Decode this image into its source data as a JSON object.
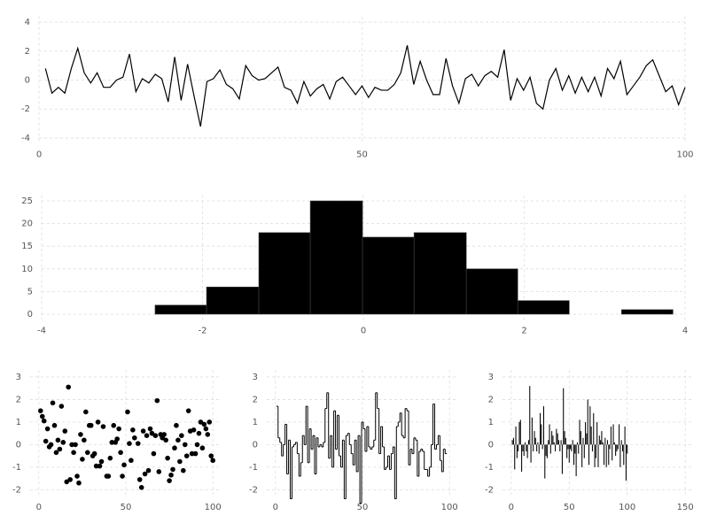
{
  "chart_data": [
    {
      "type": "line",
      "color": "#000000",
      "grid": true,
      "x": [
        1,
        2,
        3,
        4,
        5,
        6,
        7,
        8,
        9,
        10,
        11,
        12,
        13,
        14,
        15,
        16,
        17,
        18,
        19,
        20,
        21,
        22,
        23,
        24,
        25,
        26,
        27,
        28,
        29,
        30,
        31,
        32,
        33,
        34,
        35,
        36,
        37,
        38,
        39,
        40,
        41,
        42,
        43,
        44,
        45,
        46,
        47,
        48,
        49,
        50,
        51,
        52,
        53,
        54,
        55,
        56,
        57,
        58,
        59,
        60,
        61,
        62,
        63,
        64,
        65,
        66,
        67,
        68,
        69,
        70,
        71,
        72,
        73,
        74,
        75,
        76,
        77,
        78,
        79,
        80,
        81,
        82,
        83,
        84,
        85,
        86,
        87,
        88,
        89,
        90,
        91,
        92,
        93,
        94,
        95,
        96,
        97,
        98,
        99,
        100
      ],
      "values": [
        0.8,
        -0.9,
        -0.5,
        -0.9,
        0.8,
        2.2,
        0.5,
        -0.2,
        0.5,
        -0.5,
        -0.5,
        0.0,
        0.2,
        1.8,
        -0.8,
        0.1,
        -0.2,
        0.4,
        0.1,
        -1.5,
        1.6,
        -1.4,
        1.1,
        -1.1,
        -3.2,
        -0.1,
        0.1,
        0.7,
        -0.3,
        -0.6,
        -1.3,
        1.0,
        0.3,
        0.0,
        0.1,
        0.5,
        0.9,
        -0.5,
        -0.7,
        -1.6,
        -0.1,
        -1.1,
        -0.6,
        -0.3,
        -1.3,
        -0.1,
        0.2,
        -0.4,
        -1.0,
        -0.4,
        -1.2,
        -0.5,
        -0.7,
        -0.7,
        -0.3,
        0.5,
        2.4,
        -0.3,
        1.3,
        0.0,
        -1.0,
        -1.0,
        1.5,
        -0.4,
        -1.6,
        0.1,
        0.4,
        -0.4,
        0.3,
        0.6,
        0.2,
        2.1,
        -1.4,
        0.1,
        -0.7,
        0.2,
        -1.6,
        -2.0,
        0.0,
        0.8,
        -0.7,
        0.3,
        -0.9,
        0.2,
        -0.8,
        0.2,
        -1.1,
        0.8,
        0.1,
        1.3,
        -1.0,
        -0.4,
        0.2,
        1.0,
        1.4,
        0.3,
        -0.8,
        -0.4,
        -1.7,
        -0.5
      ],
      "xlim": [
        0,
        100
      ],
      "ylim": [
        -4.4,
        4.4
      ],
      "xticks": [
        0,
        50,
        100
      ],
      "yticks": [
        -4,
        -2,
        0,
        2,
        4
      ]
    },
    {
      "type": "histogram",
      "color": "#000000",
      "grid": true,
      "bins": [
        -2.59,
        -1.95,
        -1.3,
        -0.66,
        -0.01,
        0.63,
        1.28,
        1.92,
        2.56,
        3.21,
        3.85
      ],
      "values": [
        2,
        6,
        18,
        25,
        17,
        18,
        10,
        3,
        0,
        1
      ],
      "xlim": [
        -4,
        4
      ],
      "ylim": [
        -1.25,
        26.25
      ],
      "xticks": [
        -4,
        -2,
        0,
        2,
        4
      ],
      "yticks": [
        0,
        5,
        10,
        15,
        20,
        25
      ]
    },
    {
      "type": "scatter",
      "color": "#000000",
      "grid": true,
      "x": [
        1,
        2,
        3,
        4,
        5,
        6,
        7,
        8,
        9,
        10,
        11,
        12,
        13,
        14,
        15,
        16,
        17,
        18,
        19,
        20,
        21,
        22,
        23,
        24,
        25,
        26,
        27,
        28,
        29,
        30,
        31,
        32,
        33,
        34,
        35,
        36,
        37,
        39,
        40,
        41,
        42,
        43,
        44,
        45,
        46,
        47,
        48,
        49,
        51,
        52,
        53,
        54,
        55,
        57,
        58,
        59,
        60,
        61,
        62,
        63,
        64,
        65,
        66,
        67,
        68,
        69,
        70,
        71,
        72,
        73,
        74,
        75,
        76,
        77,
        78,
        79,
        80,
        81,
        82,
        83,
        84,
        85,
        86,
        87,
        88,
        89,
        90,
        91,
        92,
        93,
        94,
        95,
        96,
        97,
        98,
        99,
        100
      ],
      "values": [
        1.5,
        1.25,
        1.05,
        0.15,
        0.7,
        -0.1,
        0,
        1.85,
        0.85,
        -0.35,
        0.2,
        -0.2,
        1.7,
        0.1,
        0.6,
        -1.65,
        2.55,
        -1.55,
        0,
        -0.35,
        0,
        -1.4,
        -1.7,
        0.45,
        -0.65,
        0.2,
        1.45,
        -0.35,
        0.85,
        0.85,
        -0.5,
        -0.4,
        -0.95,
        1.0,
        -0.95,
        -0.75,
        0.8,
        -1.4,
        -1.4,
        -0.6,
        0.1,
        0.85,
        0.1,
        0.25,
        0.7,
        -0.35,
        -1.4,
        -0.9,
        1.45,
        0.05,
        -0.7,
        0.65,
        0.3,
        0.05,
        -1.55,
        -1.9,
        0.6,
        -1.3,
        0.4,
        -1.15,
        0.7,
        0.5,
        -0.4,
        0.4,
        1.95,
        -1.2,
        0.45,
        0.3,
        0.45,
        0.2,
        -0.6,
        -1.6,
        -1.35,
        -1.1,
        -0.15,
        0.85,
        0.2,
        -0.75,
        0.4,
        -1.15,
        0,
        -0.5,
        1.5,
        0.6,
        -0.4,
        0.65,
        -0.4,
        0,
        0.5,
        1.0,
        -0.15,
        0.9,
        0.7,
        0.45,
        1.0,
        -0.5,
        -0.7
      ],
      "xlim": [
        -5,
        105
      ],
      "ylim": [
        -2.3,
        3.3
      ],
      "xticks": [
        0,
        50,
        100
      ],
      "yticks": [
        -2,
        -1,
        0,
        1,
        2,
        3
      ]
    },
    {
      "type": "step",
      "color": "#000000",
      "grid": true,
      "x": [
        1,
        2,
        3,
        4,
        5,
        6,
        7,
        8,
        9,
        10,
        11,
        12,
        13,
        14,
        15,
        16,
        17,
        18,
        19,
        20,
        21,
        22,
        23,
        24,
        25,
        26,
        27,
        28,
        29,
        30,
        31,
        32,
        33,
        34,
        35,
        36,
        37,
        38,
        39,
        40,
        41,
        42,
        43,
        44,
        45,
        46,
        47,
        48,
        49,
        50,
        51,
        52,
        53,
        54,
        55,
        56,
        57,
        58,
        59,
        60,
        61,
        62,
        63,
        64,
        65,
        66,
        67,
        68,
        69,
        70,
        71,
        72,
        73,
        74,
        75,
        76,
        77,
        78,
        79,
        80,
        81,
        82,
        83,
        84,
        85,
        86,
        87,
        88,
        89,
        90,
        91,
        92,
        93,
        94,
        95,
        96,
        97,
        98
      ],
      "values": [
        1.7,
        0.3,
        0.1,
        -0.5,
        0,
        0.9,
        -1.3,
        0.2,
        -2.4,
        -0.1,
        0,
        0.1,
        -0.4,
        -1.4,
        -0.8,
        0.4,
        0,
        1.7,
        -0.8,
        0.7,
        -0.2,
        0.4,
        -1.3,
        0.3,
        -0.1,
        0,
        -0.1,
        0.1,
        1.6,
        2.3,
        -0.6,
        0.4,
        -1.0,
        1.5,
        -0.2,
        1.3,
        -0.5,
        -1.0,
        0.2,
        -2.4,
        0.4,
        0.5,
        0,
        -0.4,
        -0.9,
        0.2,
        -1.2,
        0.4,
        -2.6,
        1.0,
        0.7,
        -0.3,
        0.8,
        -0.1,
        -0.2,
        -0.1,
        0.2,
        2.3,
        1.6,
        -0.4,
        0.8,
        -0.1,
        -1.1,
        -1.0,
        -0.5,
        -1.1,
        -0.4,
        -0.1,
        -2.4,
        0.8,
        1.0,
        1.4,
        0.4,
        0.3,
        1.6,
        1.5,
        -0.9,
        -0.2,
        -0.4,
        0.3,
        0.2,
        -1.4,
        -0.3,
        -0.2,
        -0.3,
        -1.1,
        -1.1,
        -1.4,
        -1.0,
        0,
        1.8,
        -0.2,
        0,
        0.4,
        -0.7,
        -1.2,
        -0.2,
        -0.4
      ],
      "xlim": [
        -5,
        105
      ],
      "ylim": [
        -2.3,
        3.3
      ],
      "xticks": [
        0,
        50,
        100
      ],
      "yticks": [
        -2,
        -1,
        0,
        1,
        2,
        3
      ]
    },
    {
      "type": "bar",
      "color": "#000000",
      "grid": true,
      "x": [
        1,
        2,
        3,
        4,
        5,
        6,
        7,
        8,
        9,
        10,
        11,
        12,
        13,
        14,
        15,
        16,
        17,
        18,
        19,
        20,
        21,
        22,
        23,
        24,
        25,
        26,
        27,
        28,
        29,
        30,
        31,
        32,
        33,
        34,
        35,
        36,
        37,
        38,
        39,
        40,
        41,
        42,
        43,
        44,
        45,
        46,
        47,
        48,
        49,
        50,
        51,
        52,
        53,
        54,
        55,
        56,
        57,
        58,
        59,
        60,
        61,
        62,
        63,
        64,
        65,
        66,
        67,
        68,
        69,
        70,
        71,
        72,
        73,
        74,
        75,
        76,
        77,
        78,
        79,
        80,
        81,
        82,
        83,
        84,
        85,
        86,
        87,
        88,
        89,
        90,
        91,
        92,
        93,
        94,
        95,
        96,
        97,
        98,
        99,
        100
      ],
      "values": [
        0.2,
        0.3,
        -1.1,
        0.8,
        -0.6,
        -0.3,
        1.0,
        1.1,
        -1.2,
        -0.3,
        -0.5,
        0.1,
        -0.3,
        -0.6,
        0.2,
        2.6,
        -0.8,
        1.2,
        -0.3,
        0.6,
        0.3,
        -0.3,
        0.1,
        -0.4,
        1.4,
        0.9,
        -0.2,
        1.7,
        -1.5,
        -0.5,
        -0.6,
        0.2,
        0.9,
        -0.4,
        0.6,
        0.4,
        0.1,
        -0.3,
        0.7,
        0.5,
        0.2,
        -0.3,
        0.2,
        -1.3,
        2.5,
        0.6,
        0.3,
        -0.6,
        -0.2,
        -0.8,
        -0.2,
        -0.3,
        0.2,
        -0.9,
        -0.4,
        -1.4,
        0.1,
        -0.4,
        1.1,
        0.6,
        -1.0,
        0.3,
        -0.6,
        1.0,
        0.5,
        2.0,
        -0.9,
        1.7,
        0.8,
        -0.3,
        1.4,
        -1.0,
        -0.6,
        1.0,
        -1.0,
        0.4,
        0.2,
        0.6,
        0.1,
        -0.9,
        0.3,
        -1.0,
        0.2,
        -0.9,
        -0.2,
        0.8,
        -0.7,
        0.9,
        0.1,
        -0.5,
        -0.3,
        -0.2,
        0.9,
        -1.0,
        0.2,
        -0.3,
        -0.9,
        0.8,
        -1.6,
        -0.4
      ],
      "xlim": [
        -7.5,
        157.5
      ],
      "ylim": [
        -2.3,
        3.3
      ],
      "xticks": [
        0,
        50,
        100,
        150
      ],
      "yticks": [
        -2,
        -1,
        0,
        1,
        2,
        3
      ]
    }
  ]
}
